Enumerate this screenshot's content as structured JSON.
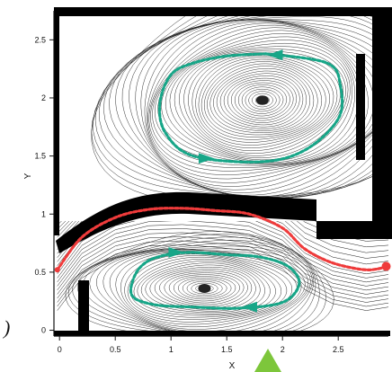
{
  "chart_data": {
    "type": "streamline",
    "title": "",
    "xlabel": "X",
    "ylabel": "Y",
    "xlim": [
      -0.05,
      2.95
    ],
    "ylim": [
      -0.05,
      2.75
    ],
    "x_ticks": [
      "0",
      "0.5",
      "1",
      "1.5",
      "2",
      "2.5"
    ],
    "x_tick_values": [
      0,
      0.5,
      1,
      1.5,
      2,
      2.5
    ],
    "y_ticks": [
      "0",
      "0.5",
      "1",
      "1.5",
      "2",
      "2.5"
    ],
    "y_tick_values": [
      0,
      0.5,
      1,
      1.5,
      2,
      2.5
    ],
    "vortices": [
      {
        "center_x": 1.82,
        "center_y": 1.98,
        "circulation": "counter-clockwise"
      },
      {
        "center_x": 1.3,
        "center_y": 0.36,
        "circulation": "clockwise"
      }
    ],
    "through_flow_path": {
      "x": [
        -0.02,
        0.2,
        0.5,
        0.8,
        1.1,
        1.4,
        1.7,
        2.0,
        2.2,
        2.45,
        2.75,
        2.95
      ],
      "y": [
        0.52,
        0.8,
        0.97,
        1.04,
        1.05,
        1.03,
        1.0,
        0.88,
        0.7,
        0.58,
        0.52,
        0.55
      ]
    },
    "upper_loop_path": {
      "x": [
        1.85,
        2.4,
        2.52,
        2.5,
        2.2,
        1.8,
        1.2,
        0.95,
        0.9,
        1.0,
        1.2,
        1.5,
        1.85
      ],
      "y": [
        2.38,
        2.3,
        2.1,
        1.82,
        1.55,
        1.45,
        1.5,
        1.7,
        1.95,
        2.2,
        2.3,
        2.36,
        2.38
      ]
    },
    "lower_loop_path": {
      "x": [
        1.0,
        1.2,
        1.5,
        1.8,
        2.05,
        2.15,
        2.0,
        1.6,
        1.2,
        0.85,
        0.65,
        0.68,
        0.8,
        1.0
      ],
      "y": [
        0.66,
        0.67,
        0.65,
        0.63,
        0.55,
        0.4,
        0.24,
        0.19,
        0.2,
        0.22,
        0.3,
        0.48,
        0.6,
        0.66
      ]
    },
    "colors": {
      "through_flow": "#ef3b3b",
      "recirculation": "#18a688",
      "inlet_marker": "#7dc63b",
      "wall": "#000000"
    }
  },
  "annotations": {
    "paren_label": ")"
  }
}
